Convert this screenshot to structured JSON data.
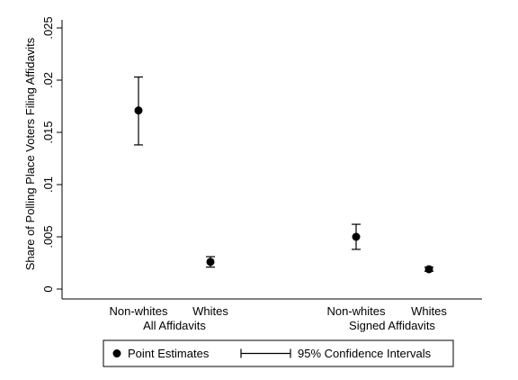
{
  "chart_data": {
    "type": "scatter",
    "ylabel": "Share of Polling Place Voters Filing Affidavits",
    "xlabel": "",
    "ylim": [
      0,
      0.025
    ],
    "yticks": [
      {
        "value": 0,
        "label": "0"
      },
      {
        "value": 0.005,
        "label": ".005"
      },
      {
        "value": 0.01,
        "label": ".01"
      },
      {
        "value": 0.015,
        "label": ".015"
      },
      {
        "value": 0.02,
        "label": ".02"
      },
      {
        "value": 0.025,
        "label": ".025"
      }
    ],
    "grid": false,
    "groups": [
      {
        "label": "All Affidavits",
        "points": [
          {
            "category": "Non-whites",
            "estimate": 0.0171,
            "ci_low": 0.0138,
            "ci_high": 0.0203
          },
          {
            "category": "Whites",
            "estimate": 0.0026,
            "ci_low": 0.0021,
            "ci_high": 0.0031
          }
        ]
      },
      {
        "label": "Signed Affidavits",
        "points": [
          {
            "category": "Non-whites",
            "estimate": 0.005,
            "ci_low": 0.0038,
            "ci_high": 0.0062
          },
          {
            "category": "Whites",
            "estimate": 0.0019,
            "ci_low": 0.0017,
            "ci_high": 0.0021
          }
        ]
      }
    ],
    "legend": {
      "placement": "bottom",
      "entries": [
        {
          "label": "Point Estimates",
          "marker": "dot"
        },
        {
          "label": "95% Confidence Intervals",
          "marker": "capped-line"
        }
      ]
    },
    "colors": {
      "marker": "#000000",
      "axis": "#000000"
    }
  }
}
